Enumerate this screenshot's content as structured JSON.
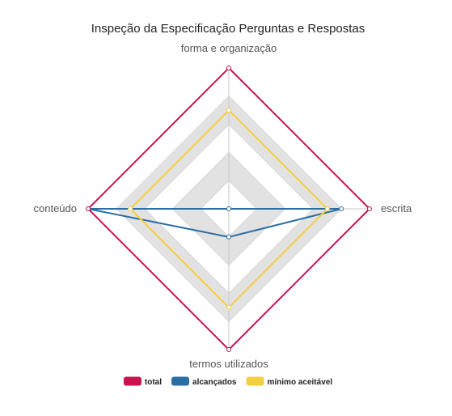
{
  "chart_data": {
    "type": "radar",
    "title": "Inspeção da Especificação Perguntas e Respostas",
    "axes": [
      "forma e organização",
      "escrita",
      "termos utilizados",
      "conteúdo"
    ],
    "range": [
      0,
      5
    ],
    "grid_levels": 5,
    "banded_background": true,
    "legend_position": "bottom",
    "series": [
      {
        "name": "total",
        "color": "#c9134f",
        "values": [
          5,
          5,
          5,
          5
        ]
      },
      {
        "name": "alcançados",
        "color": "#2b6ea3",
        "values": [
          0,
          4,
          1,
          5
        ]
      },
      {
        "name": "mínimo aceitável",
        "color": "#f5ce3e",
        "values": [
          3.5,
          3.5,
          3.5,
          3.5
        ]
      }
    ]
  }
}
